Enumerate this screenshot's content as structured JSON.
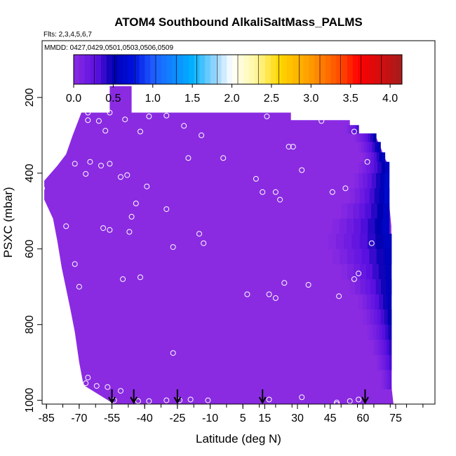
{
  "chart_data": {
    "type": "heatmap",
    "title": "ATOM4 Southbound AlkaliSaltMass_PALMS",
    "flights_note": "Flts: 2,3,4,5,6,7",
    "dates_note": "MMDD: 0427,0429,0501,0503,0506,0509",
    "xlabel": "Latitude (deg N)",
    "ylabel": "PSXC (mbar)",
    "xlim": [
      -87,
      93
    ],
    "ylim": [
      1010,
      50
    ],
    "x_ticks": [
      -85,
      -70,
      -55,
      -40,
      -25,
      -10,
      5,
      15,
      30,
      45,
      60,
      75
    ],
    "x_minor_ticks": [
      -85,
      -77.5,
      -70,
      -62.5,
      -55,
      -47.5,
      -40,
      -32.5,
      -25,
      -17.5,
      -10,
      -2.5,
      5,
      12.5,
      20,
      27.5,
      35,
      42.5,
      50,
      57.5,
      65,
      72.5,
      80,
      87.5
    ],
    "y_ticks": [
      200,
      400,
      600,
      800,
      1000
    ],
    "colorbar": {
      "ticks": [
        0.0,
        0.5,
        1.0,
        1.5,
        2.0,
        2.5,
        3.0,
        3.5,
        4.0
      ],
      "tick_labels": [
        "0.0",
        "0.5",
        "1.0",
        "1.5",
        "2.0",
        "2.5",
        "3.0",
        "3.5",
        "4.0"
      ],
      "range": [
        0.0,
        4.15
      ],
      "stops": [
        {
          "v": 0.0,
          "c": "#8a2be2"
        },
        {
          "v": 0.3,
          "c": "#5a10e0"
        },
        {
          "v": 0.5,
          "c": "#0000b0"
        },
        {
          "v": 0.75,
          "c": "#0010e0"
        },
        {
          "v": 1.0,
          "c": "#1e5cff"
        },
        {
          "v": 1.5,
          "c": "#00b0ff"
        },
        {
          "v": 1.8,
          "c": "#9ed8ff"
        },
        {
          "v": 2.0,
          "c": "#ffffff"
        },
        {
          "v": 2.3,
          "c": "#fff8a0"
        },
        {
          "v": 2.6,
          "c": "#ffd700"
        },
        {
          "v": 3.0,
          "c": "#ff9a00"
        },
        {
          "v": 3.4,
          "c": "#ff4400"
        },
        {
          "v": 3.6,
          "c": "#ff0000"
        },
        {
          "v": 4.15,
          "c": "#a51c1c"
        }
      ]
    },
    "field_value": 0.0,
    "coverage_outline": [
      [
        -56,
        170
      ],
      [
        -46,
        170
      ],
      [
        -46,
        240
      ],
      [
        -18,
        240
      ],
      [
        10,
        240
      ],
      [
        27,
        240
      ],
      [
        27,
        260
      ],
      [
        54,
        260
      ],
      [
        54,
        285
      ],
      [
        58,
        285
      ],
      [
        58,
        305
      ],
      [
        66,
        305
      ],
      [
        68,
        330
      ],
      [
        70,
        360
      ],
      [
        72,
        380
      ],
      [
        72,
        480
      ],
      [
        73,
        540
      ],
      [
        73,
        960
      ],
      [
        74,
        1010
      ],
      [
        -54,
        1010
      ],
      [
        -68,
        960
      ],
      [
        -70,
        900
      ],
      [
        -72,
        820
      ],
      [
        -74,
        760
      ],
      [
        -78,
        650
      ],
      [
        -80,
        580
      ],
      [
        -82,
        520
      ],
      [
        -86,
        470
      ],
      [
        -86,
        420
      ],
      [
        -80,
        380
      ],
      [
        -76,
        350
      ],
      [
        -73,
        300
      ],
      [
        -71,
        270
      ],
      [
        -69,
        240
      ],
      [
        -56,
        240
      ]
    ],
    "enhanced_region": {
      "rows": [
        {
          "p": 285,
          "x0": 52,
          "x1": 58,
          "v": 0.35
        },
        {
          "p": 305,
          "x0": 56,
          "x1": 66,
          "v": 0.5
        },
        {
          "p": 330,
          "x0": 58,
          "x1": 68,
          "v": 0.55
        },
        {
          "p": 360,
          "x0": 60,
          "x1": 70,
          "v": 0.6
        },
        {
          "p": 380,
          "x0": 58,
          "x1": 72,
          "v": 0.6
        },
        {
          "p": 420,
          "x0": 56,
          "x1": 72,
          "v": 0.65
        },
        {
          "p": 460,
          "x0": 54,
          "x1": 72,
          "v": 0.65
        },
        {
          "p": 500,
          "x0": 50,
          "x1": 72,
          "v": 0.6
        },
        {
          "p": 540,
          "x0": 46,
          "x1": 72,
          "v": 0.6
        },
        {
          "p": 580,
          "x0": 44,
          "x1": 73,
          "v": 0.58
        },
        {
          "p": 620,
          "x0": 46,
          "x1": 73,
          "v": 0.55
        },
        {
          "p": 660,
          "x0": 50,
          "x1": 73,
          "v": 0.55
        },
        {
          "p": 700,
          "x0": 54,
          "x1": 73,
          "v": 0.55
        },
        {
          "p": 740,
          "x0": 58,
          "x1": 73,
          "v": 0.55
        },
        {
          "p": 780,
          "x0": 60,
          "x1": 73,
          "v": 0.5
        },
        {
          "p": 820,
          "x0": 62,
          "x1": 73,
          "v": 0.45
        },
        {
          "p": 860,
          "x0": 64,
          "x1": 73,
          "v": 0.4
        },
        {
          "p": 900,
          "x0": 66,
          "x1": 73,
          "v": 0.35
        },
        {
          "p": 940,
          "x0": 68,
          "x1": 73,
          "v": 0.25
        }
      ]
    },
    "samples": [
      [
        -79,
        250
      ],
      [
        -66,
        240
      ],
      [
        -61,
        212
      ],
      [
        -56,
        240
      ],
      [
        -66,
        260
      ],
      [
        -61,
        262
      ],
      [
        -49,
        258
      ],
      [
        -42,
        290
      ],
      [
        -38,
        250
      ],
      [
        -30,
        248
      ],
      [
        -22,
        275
      ],
      [
        -14,
        300
      ],
      [
        -4,
        360
      ],
      [
        8,
        228
      ],
      [
        16,
        250
      ],
      [
        26,
        330
      ],
      [
        28,
        330
      ],
      [
        32,
        392
      ],
      [
        39,
        218
      ],
      [
        41,
        262
      ],
      [
        56,
        290
      ],
      [
        -58,
        288
      ],
      [
        -72,
        375
      ],
      [
        -65,
        370
      ],
      [
        -67,
        402
      ],
      [
        -60,
        380
      ],
      [
        -56,
        375
      ],
      [
        -51,
        410
      ],
      [
        -48,
        405
      ],
      [
        -44,
        480
      ],
      [
        -46,
        515
      ],
      [
        -39,
        435
      ],
      [
        -30,
        495
      ],
      [
        -20,
        360
      ],
      [
        -15,
        560
      ],
      [
        -13,
        585
      ],
      [
        -47,
        555
      ],
      [
        -56,
        550
      ],
      [
        -59,
        545
      ],
      [
        -76,
        540
      ],
      [
        -72,
        640
      ],
      [
        -70,
        700
      ],
      [
        -50,
        680
      ],
      [
        -42,
        675
      ],
      [
        -27,
        595
      ],
      [
        11,
        415
      ],
      [
        14,
        450
      ],
      [
        20,
        450
      ],
      [
        22,
        470
      ],
      [
        46,
        450
      ],
      [
        52,
        440
      ],
      [
        62,
        370
      ],
      [
        64,
        585
      ],
      [
        58,
        665
      ],
      [
        56,
        680
      ],
      [
        49,
        725
      ],
      [
        35,
        695
      ],
      [
        24,
        690
      ],
      [
        20,
        730
      ],
      [
        7,
        720
      ],
      [
        17,
        720
      ],
      [
        -27,
        875
      ],
      [
        -66,
        940
      ],
      [
        -67,
        955
      ],
      [
        -62,
        962
      ],
      [
        -57,
        965
      ],
      [
        -51,
        975
      ],
      [
        -43,
        1002
      ],
      [
        -38,
        1002
      ],
      [
        -30,
        1000
      ],
      [
        -24,
        1000
      ],
      [
        -19,
        998
      ],
      [
        -11,
        1000
      ],
      [
        17,
        998
      ],
      [
        32,
        992
      ],
      [
        48,
        1006
      ],
      [
        54,
        1002
      ],
      [
        58,
        998
      ],
      [
        75,
        993
      ],
      [
        -87,
        440
      ],
      [
        48,
        1010
      ],
      [
        -54,
        1000
      ]
    ],
    "arrows_x": [
      -55,
      -45,
      -25,
      14,
      61
    ]
  }
}
